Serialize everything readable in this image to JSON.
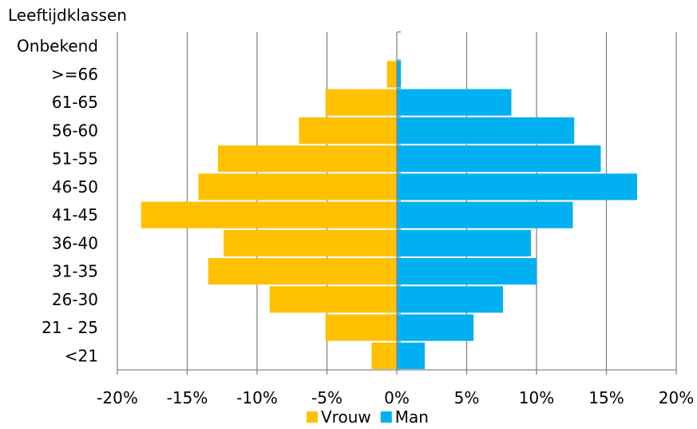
{
  "chart_data": {
    "type": "bar",
    "orientation": "horizontal",
    "ylabel": "Leeftijdklassen",
    "categories": [
      "Onbekend",
      ">=66",
      "61-65",
      "56-60",
      "51-55",
      "46-50",
      "41-45",
      "36-40",
      "31-35",
      "26-30",
      "21 - 25",
      "<21"
    ],
    "series": [
      {
        "name": "Vrouw",
        "color": "#FFC000",
        "values": [
          0,
          -0.7,
          -5.1,
          -7.0,
          -12.8,
          -14.2,
          -18.3,
          -12.4,
          -13.5,
          -9.1,
          -5.1,
          -1.8
        ]
      },
      {
        "name": "Man",
        "color": "#00B0F0",
        "values": [
          0,
          0.3,
          8.2,
          12.7,
          14.6,
          17.2,
          12.6,
          9.6,
          10.0,
          7.6,
          5.5,
          2.0
        ]
      }
    ],
    "xlim": [
      -20,
      20
    ],
    "xticks": [
      "-20%",
      "-15%",
      "-10%",
      "-5%",
      "0%",
      "5%",
      "10%",
      "15%",
      "20%"
    ],
    "grid": true,
    "legend": "bottom"
  }
}
